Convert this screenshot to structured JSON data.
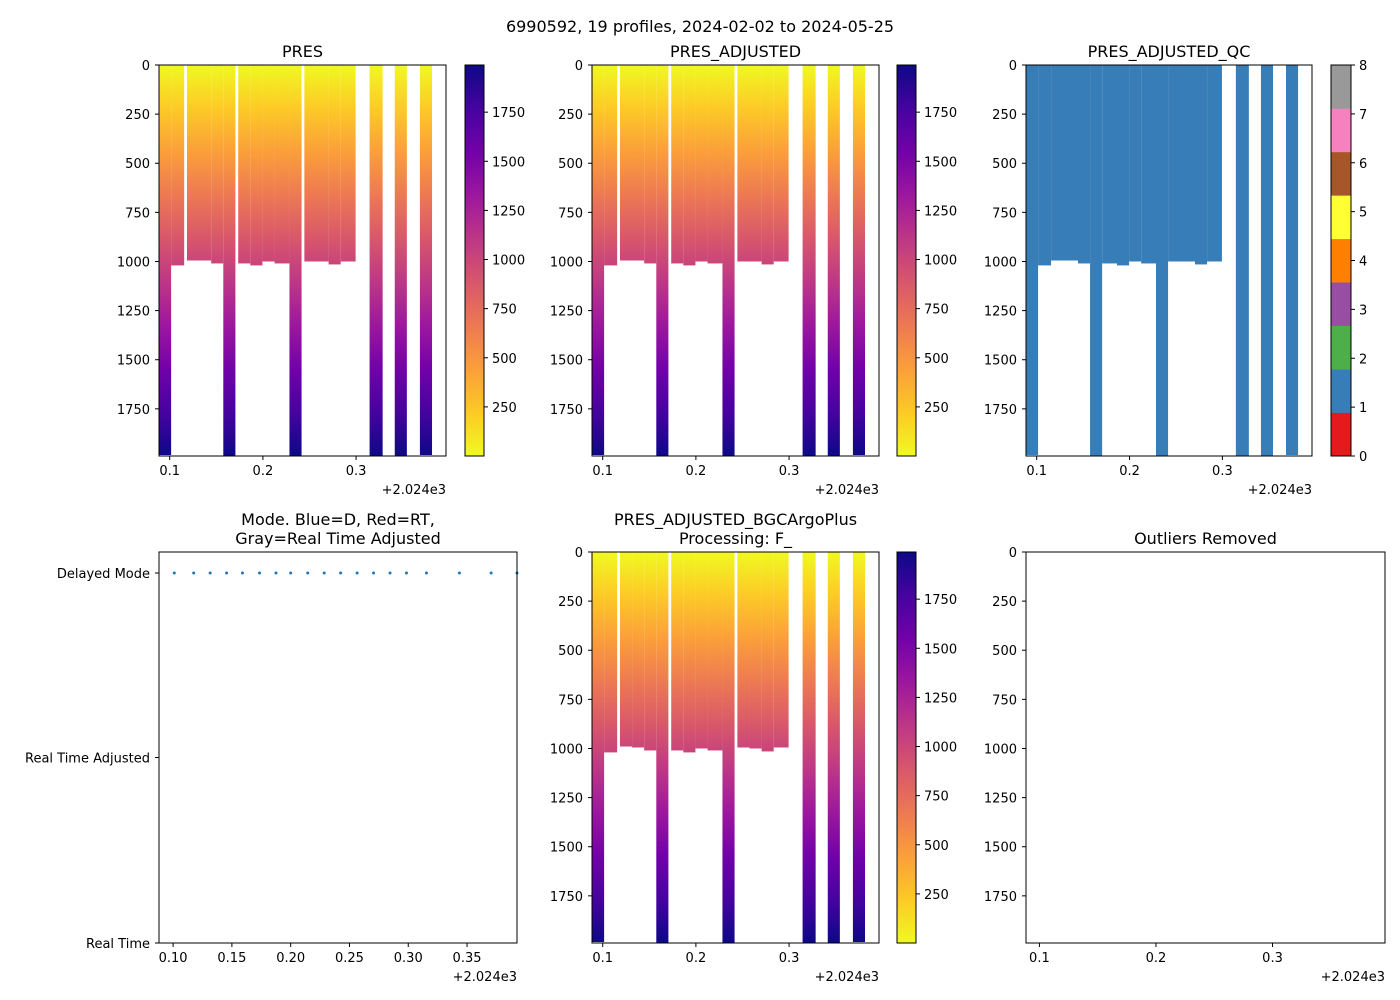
{
  "suptitle": "6990592, 19 profiles, 2024-02-02 to 2024-05-25",
  "x_offset_label": "+2.024e3",
  "colormaps": {
    "plasma_r": [
      "#f0f921",
      "#fdca26",
      "#fb9f3a",
      "#ed7953",
      "#d8576b",
      "#bd3786",
      "#9c179e",
      "#7201a8",
      "#46039f",
      "#0d0887"
    ],
    "qc": [
      "#e41a1c",
      "#377eb8",
      "#4daf4a",
      "#984ea3",
      "#ff7f00",
      "#ffff33",
      "#a65628",
      "#f781bf",
      "#999999"
    ]
  },
  "chart_data": [
    {
      "id": "pres",
      "type": "heatmap",
      "title": "PRES",
      "cmap": "plasma_r",
      "x_ticks": [
        0.1,
        0.2,
        0.3
      ],
      "xlim": [
        0.0885,
        0.3965
      ],
      "y_ticks": [
        0,
        250,
        500,
        750,
        1000,
        1250,
        1500,
        1750
      ],
      "ylim": [
        1990,
        0
      ],
      "colorbar": {
        "range": [
          0,
          1990
        ],
        "ticks": [
          250,
          500,
          750,
          1000,
          1250,
          1500,
          1750
        ]
      },
      "profiles": [
        {
          "x0": 0.0885,
          "x1": 0.1015,
          "max": 1985
        },
        {
          "x0": 0.1015,
          "x1": 0.1155,
          "max": 1020
        },
        {
          "x0": 0.1185,
          "x1": 0.1445,
          "max": 995
        },
        {
          "x0": 0.1445,
          "x1": 0.1575,
          "max": 1010
        },
        {
          "x0": 0.1575,
          "x1": 0.1705,
          "max": 1990
        },
        {
          "x0": 0.1735,
          "x1": 0.1865,
          "max": 1010
        },
        {
          "x0": 0.1865,
          "x1": 0.1995,
          "max": 1020
        },
        {
          "x0": 0.1995,
          "x1": 0.2125,
          "max": 1000
        },
        {
          "x0": 0.2125,
          "x1": 0.2285,
          "max": 1010
        },
        {
          "x0": 0.2285,
          "x1": 0.2415,
          "max": 1990
        },
        {
          "x0": 0.2445,
          "x1": 0.2705,
          "max": 1000
        },
        {
          "x0": 0.2705,
          "x1": 0.2835,
          "max": 1015
        },
        {
          "x0": 0.2835,
          "x1": 0.2995,
          "max": 1000
        },
        {
          "x0": 0.3145,
          "x1": 0.3285,
          "max": 1990
        },
        {
          "x0": 0.3415,
          "x1": 0.3545,
          "max": 1990
        },
        {
          "x0": 0.3685,
          "x1": 0.3815,
          "max": 1985
        }
      ]
    },
    {
      "id": "adj",
      "type": "heatmap",
      "title": "PRES_ADJUSTED",
      "cmap": "plasma_r",
      "x_ticks": [
        0.1,
        0.2,
        0.3
      ],
      "xlim": [
        0.0885,
        0.3965
      ],
      "y_ticks": [
        0,
        250,
        500,
        750,
        1000,
        1250,
        1500,
        1750
      ],
      "ylim": [
        1990,
        0
      ],
      "colorbar": {
        "range": [
          0,
          1990
        ],
        "ticks": [
          250,
          500,
          750,
          1000,
          1250,
          1500,
          1750
        ]
      },
      "profiles": [
        {
          "x0": 0.0885,
          "x1": 0.1015,
          "max": 1985
        },
        {
          "x0": 0.1015,
          "x1": 0.1155,
          "max": 1020
        },
        {
          "x0": 0.1185,
          "x1": 0.1445,
          "max": 995
        },
        {
          "x0": 0.1445,
          "x1": 0.1575,
          "max": 1010
        },
        {
          "x0": 0.1575,
          "x1": 0.1705,
          "max": 1990
        },
        {
          "x0": 0.1735,
          "x1": 0.1865,
          "max": 1010
        },
        {
          "x0": 0.1865,
          "x1": 0.1995,
          "max": 1020
        },
        {
          "x0": 0.1995,
          "x1": 0.2125,
          "max": 1000
        },
        {
          "x0": 0.2125,
          "x1": 0.2285,
          "max": 1010
        },
        {
          "x0": 0.2285,
          "x1": 0.2415,
          "max": 1990
        },
        {
          "x0": 0.2445,
          "x1": 0.2705,
          "max": 1000
        },
        {
          "x0": 0.2705,
          "x1": 0.2835,
          "max": 1015
        },
        {
          "x0": 0.2835,
          "x1": 0.2995,
          "max": 1000
        },
        {
          "x0": 0.3145,
          "x1": 0.3285,
          "max": 1990
        },
        {
          "x0": 0.3415,
          "x1": 0.3545,
          "max": 1990
        },
        {
          "x0": 0.3685,
          "x1": 0.3815,
          "max": 1985
        }
      ]
    },
    {
      "id": "qc",
      "type": "heatmap",
      "title": "PRES_ADJUSTED_QC",
      "cmap": "qc",
      "fill_value": 1,
      "x_ticks": [
        0.1,
        0.2,
        0.3
      ],
      "xlim": [
        0.0885,
        0.3965
      ],
      "y_ticks": [
        0,
        250,
        500,
        750,
        1000,
        1250,
        1500,
        1750
      ],
      "ylim": [
        1990,
        0
      ],
      "colorbar": {
        "range": [
          0,
          8
        ],
        "ticks": [
          0,
          1,
          2,
          3,
          4,
          5,
          6,
          7,
          8
        ]
      },
      "profiles": [
        {
          "x0": 0.0885,
          "x1": 0.1015,
          "max": 1985
        },
        {
          "x0": 0.1015,
          "x1": 0.1155,
          "max": 1020
        },
        {
          "x0": 0.1155,
          "x1": 0.1445,
          "max": 995
        },
        {
          "x0": 0.1445,
          "x1": 0.1575,
          "max": 1010
        },
        {
          "x0": 0.1575,
          "x1": 0.1705,
          "max": 1990
        },
        {
          "x0": 0.1705,
          "x1": 0.1865,
          "max": 1010
        },
        {
          "x0": 0.1865,
          "x1": 0.1995,
          "max": 1020
        },
        {
          "x0": 0.1995,
          "x1": 0.2125,
          "max": 1000
        },
        {
          "x0": 0.2125,
          "x1": 0.2285,
          "max": 1010
        },
        {
          "x0": 0.2285,
          "x1": 0.2415,
          "max": 1990
        },
        {
          "x0": 0.2415,
          "x1": 0.2705,
          "max": 1000
        },
        {
          "x0": 0.2705,
          "x1": 0.2835,
          "max": 1015
        },
        {
          "x0": 0.2835,
          "x1": 0.2995,
          "max": 1000
        },
        {
          "x0": 0.3145,
          "x1": 0.3285,
          "max": 1990
        },
        {
          "x0": 0.3415,
          "x1": 0.3545,
          "max": 1990
        },
        {
          "x0": 0.3685,
          "x1": 0.3815,
          "max": 1985
        }
      ]
    },
    {
      "id": "mode",
      "type": "scatter",
      "title_lines": [
        "Mode. Blue=D, Red=RT,",
        "Gray=Real Time Adjusted"
      ],
      "x_ticks": [
        0.1,
        0.15,
        0.2,
        0.25,
        0.3,
        0.35
      ],
      "x_tick_labels": [
        "0.10",
        "0.15",
        "0.20",
        "0.25",
        "0.30",
        "0.35"
      ],
      "xlim": [
        0.088,
        0.3925
      ],
      "categories": [
        "Real Time",
        "Real Time Adjusted",
        "Delayed Mode"
      ],
      "point_color": "#1f77b4",
      "points": [
        {
          "x": 0.101,
          "mode": "Delayed Mode"
        },
        {
          "x": 0.1175,
          "mode": "Delayed Mode"
        },
        {
          "x": 0.1315,
          "mode": "Delayed Mode"
        },
        {
          "x": 0.1455,
          "mode": "Delayed Mode"
        },
        {
          "x": 0.159,
          "mode": "Delayed Mode"
        },
        {
          "x": 0.1735,
          "mode": "Delayed Mode"
        },
        {
          "x": 0.1875,
          "mode": "Delayed Mode"
        },
        {
          "x": 0.2,
          "mode": "Delayed Mode"
        },
        {
          "x": 0.2145,
          "mode": "Delayed Mode"
        },
        {
          "x": 0.2285,
          "mode": "Delayed Mode"
        },
        {
          "x": 0.2425,
          "mode": "Delayed Mode"
        },
        {
          "x": 0.2565,
          "mode": "Delayed Mode"
        },
        {
          "x": 0.2705,
          "mode": "Delayed Mode"
        },
        {
          "x": 0.2845,
          "mode": "Delayed Mode"
        },
        {
          "x": 0.2985,
          "mode": "Delayed Mode"
        },
        {
          "x": 0.3155,
          "mode": "Delayed Mode"
        },
        {
          "x": 0.3435,
          "mode": "Delayed Mode"
        },
        {
          "x": 0.3705,
          "mode": "Delayed Mode"
        },
        {
          "x": 0.3925,
          "mode": "Delayed Mode"
        }
      ]
    },
    {
      "id": "bgc",
      "type": "heatmap",
      "title_lines": [
        "PRES_ADJUSTED_BGCArgoPlus",
        "Processing: F_"
      ],
      "cmap": "plasma_r",
      "x_ticks": [
        0.1,
        0.2,
        0.3
      ],
      "xlim": [
        0.0885,
        0.3965
      ],
      "y_ticks": [
        0,
        250,
        500,
        750,
        1000,
        1250,
        1500,
        1750
      ],
      "ylim": [
        1990,
        0
      ],
      "colorbar": {
        "range": [
          0,
          1990
        ],
        "ticks": [
          250,
          500,
          750,
          1000,
          1250,
          1500,
          1750
        ]
      },
      "profiles": [
        {
          "x0": 0.0885,
          "x1": 0.1015,
          "max": 1985
        },
        {
          "x0": 0.1015,
          "x1": 0.1155,
          "max": 1020
        },
        {
          "x0": 0.1185,
          "x1": 0.1315,
          "max": 990
        },
        {
          "x0": 0.1315,
          "x1": 0.1445,
          "max": 995
        },
        {
          "x0": 0.1445,
          "x1": 0.1575,
          "max": 1010
        },
        {
          "x0": 0.1575,
          "x1": 0.1705,
          "max": 1990
        },
        {
          "x0": 0.1735,
          "x1": 0.1865,
          "max": 1010
        },
        {
          "x0": 0.1865,
          "x1": 0.1995,
          "max": 1020
        },
        {
          "x0": 0.1995,
          "x1": 0.2125,
          "max": 1000
        },
        {
          "x0": 0.2125,
          "x1": 0.2285,
          "max": 1010
        },
        {
          "x0": 0.2285,
          "x1": 0.2415,
          "max": 1990
        },
        {
          "x0": 0.2445,
          "x1": 0.2575,
          "max": 995
        },
        {
          "x0": 0.2575,
          "x1": 0.2705,
          "max": 1000
        },
        {
          "x0": 0.2705,
          "x1": 0.2835,
          "max": 1015
        },
        {
          "x0": 0.2835,
          "x1": 0.2995,
          "max": 995
        },
        {
          "x0": 0.3145,
          "x1": 0.3285,
          "max": 1990
        },
        {
          "x0": 0.3415,
          "x1": 0.3545,
          "max": 1990
        },
        {
          "x0": 0.3685,
          "x1": 0.3815,
          "max": 1985
        }
      ]
    },
    {
      "id": "outliers",
      "type": "scatter",
      "title": "Outliers Removed",
      "x_ticks": [
        0.1,
        0.2,
        0.3
      ],
      "xlim": [
        0.0885,
        0.3965
      ],
      "y_ticks": [
        0,
        250,
        500,
        750,
        1000,
        1250,
        1500,
        1750
      ],
      "ylim": [
        1990,
        0
      ],
      "points": []
    }
  ]
}
